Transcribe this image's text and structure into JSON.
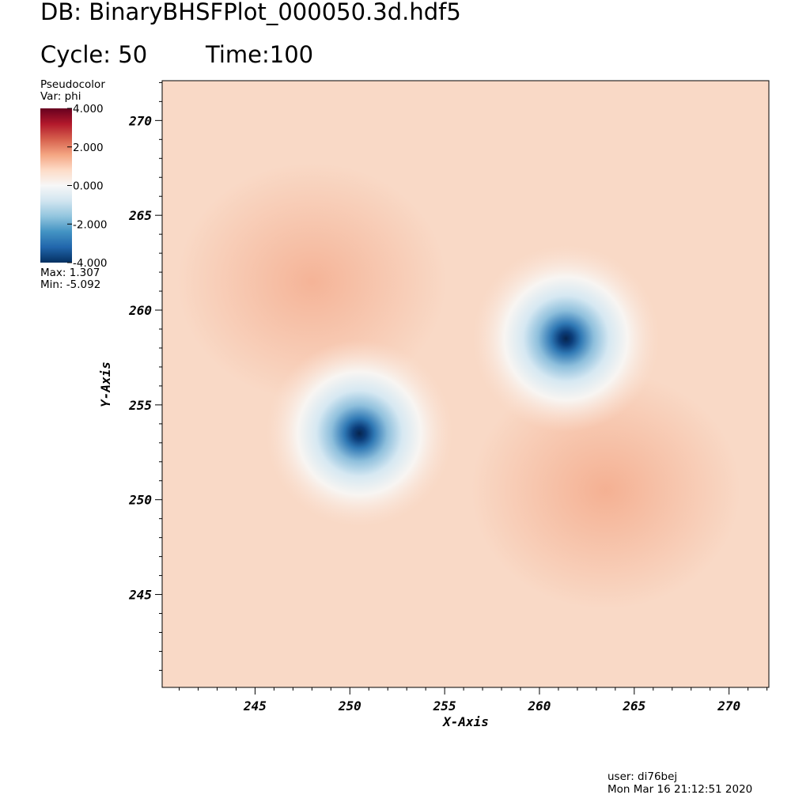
{
  "header": {
    "db": "DB: BinaryBHSFPlot_000050.3d.hdf5",
    "cycle": "Cycle: 50",
    "time": "Time:100"
  },
  "legend": {
    "title": "Pseudocolor",
    "var": "Var: phi",
    "ticks": [
      "4.000",
      "2.000",
      "0.000",
      "-2.000",
      "-4.000"
    ],
    "max": "Max:  1.307",
    "min": "Min: -5.092",
    "colormap": [
      "#053061",
      "#2166ac",
      "#4393c3",
      "#92c5de",
      "#d1e5f0",
      "#f7f7f7",
      "#fddbc7",
      "#f4a582",
      "#d6604d",
      "#b2182b",
      "#67001f"
    ],
    "range": [
      -4,
      4
    ]
  },
  "footer": {
    "user": "user: di76bej",
    "date": "Mon Mar 16 21:12:51 2020"
  },
  "chart_data": {
    "type": "heatmap",
    "variable": "phi",
    "xlabel": "X-Axis",
    "ylabel": "Y-Axis",
    "xlim": [
      240.1,
      272.1
    ],
    "ylim": [
      240.1,
      272.1
    ],
    "xticks": [
      245,
      250,
      255,
      260,
      265,
      270
    ],
    "yticks": [
      245,
      250,
      255,
      260,
      265,
      270
    ],
    "value_max": 1.307,
    "value_min": -5.092,
    "minima": [
      {
        "x": 250.5,
        "y": 253.5
      },
      {
        "x": 261.4,
        "y": 258.5
      }
    ],
    "maxima_regions": [
      {
        "x": 248.0,
        "y": 261.5
      },
      {
        "x": 263.5,
        "y": 250.5
      }
    ]
  }
}
